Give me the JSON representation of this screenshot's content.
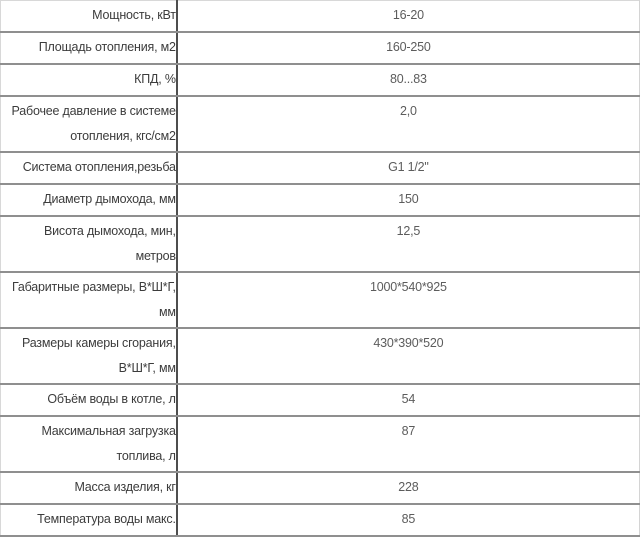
{
  "table": {
    "name": "technical-specifications",
    "columns": {
      "label": "parameter",
      "value": "value"
    },
    "rows": [
      {
        "label": "Мощность, кВт",
        "value": "16-20"
      },
      {
        "label": "Площадь отопления, м2",
        "value": "160-250"
      },
      {
        "label": "КПД, %",
        "value": "80...83"
      },
      {
        "label": "Рабочее давление в системе отопления, кгс/см2",
        "value": "2,0"
      },
      {
        "label": "Система отопления,резьба",
        "value": "G1 1/2\""
      },
      {
        "label": "Диаметр дымохода, мм",
        "value": "150"
      },
      {
        "label": "Висота дымохода, мин, метров",
        "value": "12,5"
      },
      {
        "label": "Габаритные размеры, В*Ш*Г, мм",
        "value": "1000*540*925"
      },
      {
        "label": "Размеры камеры сгорания, В*Ш*Г, мм",
        "value": "430*390*520"
      },
      {
        "label": "Объём воды в котле, л",
        "value": "54"
      },
      {
        "label": "Максимальная загрузка топлива, л",
        "value": "87"
      },
      {
        "label": "Масса изделия, кг",
        "value": "228"
      },
      {
        "label": "Температура воды макс.",
        "value": "85"
      }
    ],
    "colors": {
      "divider": "#4e4e4e",
      "row_border": "#8f8f8f",
      "outer_border": "#d8d8d8",
      "label_text": "#3c3c3c",
      "value_text": "#5c5c5c",
      "background": "#ffffff"
    }
  }
}
